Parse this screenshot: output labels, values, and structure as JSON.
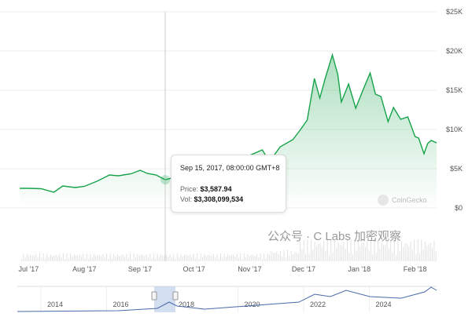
{
  "chart_data": {
    "type": "area",
    "y_ticks": [
      "$25K",
      "$20K",
      "$15K",
      "$10K",
      "$5K",
      "$0"
    ],
    "y_tick_values": [
      25000,
      20000,
      15000,
      10000,
      5000,
      0
    ],
    "ylim": [
      0,
      25000
    ],
    "x_ticks": [
      "Jul '17",
      "Aug '17",
      "Sep '17",
      "Oct '17",
      "Nov '17",
      "Dec '17",
      "Jan '18",
      "Feb '18"
    ],
    "x_tick_dates": [
      "2017-07-01",
      "2017-08-01",
      "2017-09-01",
      "2017-10-01",
      "2017-11-01",
      "2017-12-01",
      "2018-01-01",
      "2018-02-01"
    ],
    "xlim": [
      "2017-06-26",
      "2018-02-13"
    ],
    "grid": true,
    "series": [
      {
        "color": "#16a34a",
        "points": [
          [
            "2017-06-26",
            2500
          ],
          [
            "2017-07-01",
            2500
          ],
          [
            "2017-07-08",
            2450
          ],
          [
            "2017-07-15",
            2000
          ],
          [
            "2017-07-20",
            2800
          ],
          [
            "2017-07-27",
            2600
          ],
          [
            "2017-08-01",
            2750
          ],
          [
            "2017-08-08",
            3400
          ],
          [
            "2017-08-15",
            4200
          ],
          [
            "2017-08-20",
            4100
          ],
          [
            "2017-08-27",
            4350
          ],
          [
            "2017-09-01",
            4800
          ],
          [
            "2017-09-05",
            4400
          ],
          [
            "2017-09-10",
            4200
          ],
          [
            "2017-09-15",
            3588
          ],
          [
            "2017-09-20",
            3900
          ],
          [
            "2017-09-27",
            4200
          ],
          [
            "2017-10-01",
            4350
          ],
          [
            "2017-10-08",
            4600
          ],
          [
            "2017-10-13",
            5600
          ],
          [
            "2017-10-20",
            5900
          ],
          [
            "2017-10-27",
            5800
          ],
          [
            "2017-11-01",
            6700
          ],
          [
            "2017-11-08",
            7400
          ],
          [
            "2017-11-12",
            5900
          ],
          [
            "2017-11-18",
            7800
          ],
          [
            "2017-11-25",
            8700
          ],
          [
            "2017-11-29",
            9900
          ],
          [
            "2017-12-03",
            11200
          ],
          [
            "2017-12-07",
            16500
          ],
          [
            "2017-12-10",
            14000
          ],
          [
            "2017-12-13",
            16500
          ],
          [
            "2017-12-17",
            19500
          ],
          [
            "2017-12-20",
            17000
          ],
          [
            "2017-12-22",
            13500
          ],
          [
            "2017-12-26",
            15800
          ],
          [
            "2017-12-30",
            12700
          ],
          [
            "2018-01-03",
            15000
          ],
          [
            "2018-01-07",
            17200
          ],
          [
            "2018-01-10",
            14500
          ],
          [
            "2018-01-13",
            14200
          ],
          [
            "2018-01-17",
            11000
          ],
          [
            "2018-01-20",
            12800
          ],
          [
            "2018-01-24",
            11300
          ],
          [
            "2018-01-28",
            11600
          ],
          [
            "2018-02-01",
            9100
          ],
          [
            "2018-02-03",
            8900
          ],
          [
            "2018-02-06",
            6900
          ],
          [
            "2018-02-08",
            8200
          ],
          [
            "2018-02-10",
            8600
          ],
          [
            "2018-02-13",
            8300
          ]
        ]
      }
    ],
    "tooltip": {
      "date": "Sep 15, 2017, 08:00:00 GMT+8",
      "price_label": "Price:",
      "price": "$3,587.94",
      "vol_label": "Vol:",
      "vol": "$3,308,099,534"
    },
    "navigator": {
      "year_labels": [
        "2014",
        "2016",
        "2018",
        "2020",
        "2022",
        "2024"
      ]
    }
  },
  "brand": "CoinGecko",
  "watermark": "公众号 · C Labs 加密观察"
}
